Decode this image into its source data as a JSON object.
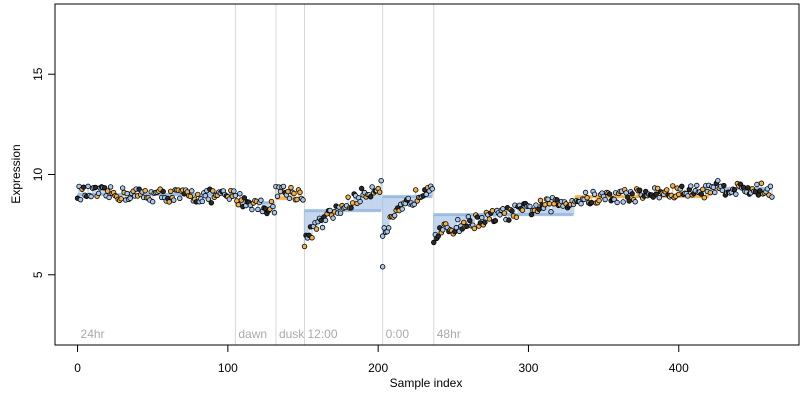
{
  "chart_data": {
    "type": "scatter",
    "title": "",
    "xlabel": "Sample index",
    "ylabel": "Expression",
    "xlim": [
      -15,
      480
    ],
    "ylim": [
      1.5,
      18.5
    ],
    "x_ticks": [
      0,
      100,
      200,
      300,
      400
    ],
    "y_ticks": [
      5,
      10,
      15
    ],
    "grid": false,
    "legend": "none",
    "colors": {
      "point_edge": "#000000",
      "point_a": "#a8c8f0",
      "point_b": "#f5b041",
      "point_dark": "#2a2a2a",
      "step_a": "#8fb3e0",
      "step_b": "#f0a83c",
      "vline": "#d8d8d8",
      "label": "#aaaaaa"
    },
    "vertical_lines": [
      {
        "x": 0,
        "label": "24hr",
        "show_line": false
      },
      {
        "x": 105,
        "label": "dawn",
        "show_line": true
      },
      {
        "x": 132,
        "label": "dusk",
        "show_line": true
      },
      {
        "x": 151,
        "label": "12:00",
        "show_line": true
      },
      {
        "x": 203,
        "label": "0:00",
        "show_line": true
      },
      {
        "x": 237,
        "label": "48hr",
        "show_line": true
      }
    ],
    "segments": [
      {
        "x": [
          0,
          104
        ],
        "y_start": 9.1,
        "y_end": 8.9,
        "level": 9.0,
        "color": "a"
      },
      {
        "x": [
          105,
          131
        ],
        "y_start": 8.9,
        "y_end": 8.3,
        "level": 8.6,
        "color": "a"
      },
      {
        "x": [
          132,
          150
        ],
        "y_start": 9.3,
        "y_end": 9.0,
        "level": 8.8,
        "color": "b"
      },
      {
        "x": [
          151,
          202
        ],
        "y_start": 6.6,
        "y_end": 9.5,
        "level": 8.2,
        "color": "a"
      },
      {
        "x": [
          203,
          236
        ],
        "y_start": 6.8,
        "y_end": 9.6,
        "level": 8.9,
        "color": "a"
      },
      {
        "x": [
          237,
          330
        ],
        "y_start": 6.9,
        "y_end": 8.7,
        "level": 8.0,
        "color": "a"
      },
      {
        "x": [
          331,
          420
        ],
        "y_start": 8.7,
        "y_end": 9.2,
        "level": 8.9,
        "color": "b"
      },
      {
        "x": [
          421,
          462
        ],
        "y_start": 9.4,
        "y_end": 9.2,
        "level": 9.3,
        "color": "a"
      }
    ],
    "outliers": [
      {
        "x": 203,
        "y": 5.4
      }
    ]
  }
}
